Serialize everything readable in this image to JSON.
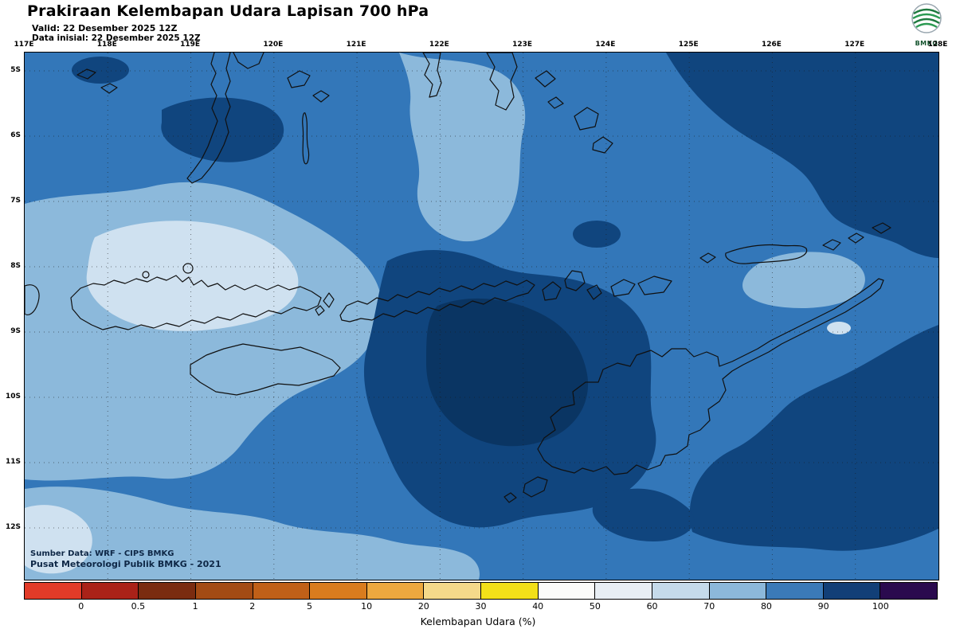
{
  "header": {
    "title": "Prakiraan Kelembapan Udara Lapisan 700 hPa",
    "valid": "Valid: 22 Desember 2025 12Z",
    "init": "Data inisial: 22 Desember 2025 12Z",
    "logo_text": "BMKG"
  },
  "map": {
    "lon_labels": [
      "117E",
      "118E",
      "119E",
      "120E",
      "121E",
      "122E",
      "123E",
      "124E",
      "125E",
      "126E",
      "127E",
      "128E"
    ],
    "lat_labels": [
      "5S",
      "6S",
      "7S",
      "8S",
      "9S",
      "10S",
      "11S",
      "12S"
    ],
    "credits": [
      "Sumber Data: WRF - CIPS BMKG",
      "Pusat Meteorologi Publik BMKG - 2021"
    ]
  },
  "colorbar": {
    "caption": "Kelembapan Udara (%)",
    "ticks": [
      "0",
      "0.5",
      "1",
      "2",
      "5",
      "10",
      "20",
      "30",
      "40",
      "50",
      "60",
      "70",
      "80",
      "90",
      "100"
    ],
    "colors": [
      "#e23b28",
      "#aa2218",
      "#7a2c10",
      "#a34b14",
      "#c06018",
      "#d97c1e",
      "#eda83f",
      "#f5d98a",
      "#f3e019",
      "#fbfbf9",
      "#e8eef4",
      "#c5daea",
      "#8cb8da",
      "#3b7ab8",
      "#123f77",
      "#2a0a4e"
    ]
  },
  "palette": {
    "medium": "#3377b9",
    "light": "#8cb9db",
    "very_light": "#cfe1f0",
    "navy": "#10457e",
    "core": "#0a3563"
  },
  "chart_data": {
    "type": "heatmap",
    "title": "Prakiraan Kelembapan Udara Lapisan 700 hPa",
    "valid_time": "22 Desember 2025 12Z",
    "initial_time": "22 Desember 2025 12Z",
    "variable": "Kelembapan Udara (%)",
    "level": "700 hPa",
    "x_ticks": [
      "117E",
      "118E",
      "119E",
      "120E",
      "121E",
      "122E",
      "123E",
      "124E",
      "125E",
      "126E",
      "127E",
      "128E"
    ],
    "y_ticks": [
      "5S",
      "6S",
      "7S",
      "8S",
      "9S",
      "10S",
      "11S",
      "12S"
    ],
    "scale_boundaries": [
      0,
      0.5,
      1,
      2,
      5,
      10,
      20,
      30,
      40,
      50,
      60,
      70,
      80,
      90,
      100
    ],
    "scale_colors": [
      "#e23b28",
      "#aa2218",
      "#7a2c10",
      "#a34b14",
      "#c06018",
      "#d97c1e",
      "#eda83f",
      "#f5d98a",
      "#f3e019",
      "#fbfbf9",
      "#e8eef4",
      "#c5daea",
      "#8cb8da",
      "#3b7ab8",
      "#123f77",
      "#2a0a4e"
    ],
    "value_range_shown_on_map": [
      60,
      100
    ],
    "features": [
      {
        "area": "dominant background across domain",
        "value_pct": "80-90"
      },
      {
        "area": "west band 117E-121E, 7S-11S and bottom-left",
        "value_pct": "70-80"
      },
      {
        "area": "patches near 118E-119.5E, 7.5S-8.5S and bottom-left corner",
        "value_pct": "60-70"
      },
      {
        "area": "large south-central region 121.5E-124E, 8S-11.5S",
        "value_pct": "90-100"
      },
      {
        "area": "top-right region 125E-128E, 5S-7S and lower-right region 125E-128E, 9S-12S",
        "value_pct": "90-100"
      },
      {
        "area": "small oval near 126E, 8.5S",
        "value_pct": "70-80"
      }
    ],
    "legend_position": "bottom horizontal colorbar",
    "grid": "dotted lat/lon graticule every 1 degree"
  }
}
